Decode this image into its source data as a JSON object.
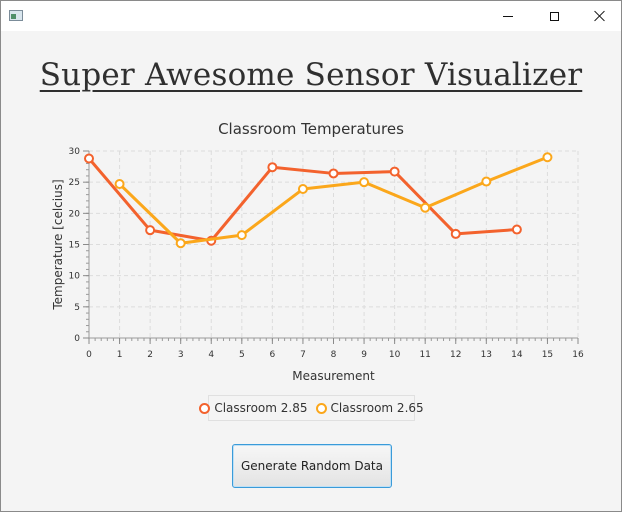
{
  "window": {
    "buttons": {
      "minimize": "minimize",
      "maximize": "maximize",
      "close": "close"
    }
  },
  "app_title": "Super Awesome Sensor Visualizer",
  "generate_button_label": "Generate Random Data",
  "chart_data": {
    "type": "line",
    "title": "Classroom Temperatures",
    "xlabel": "Measurement",
    "ylabel": "Temperature [celcius]",
    "xlim": [
      0,
      16
    ],
    "ylim": [
      0,
      30
    ],
    "x_ticks": [
      "0",
      "1",
      "2",
      "3",
      "4",
      "5",
      "6",
      "7",
      "8",
      "9",
      "10",
      "11",
      "12",
      "13",
      "14",
      "15",
      "16"
    ],
    "y_ticks": [
      "0",
      "5",
      "10",
      "15",
      "20",
      "25",
      "30"
    ],
    "grid": true,
    "legend_position": "bottom",
    "series": [
      {
        "name": "Classroom 2.85",
        "color": "#f3622d",
        "x": [
          0,
          2,
          4,
          6,
          8,
          10,
          12,
          14
        ],
        "y": [
          28.8,
          17.3,
          15.6,
          27.4,
          26.4,
          26.7,
          16.7,
          17.4
        ]
      },
      {
        "name": "Classroom 2.65",
        "color": "#fba71b",
        "x": [
          1,
          3,
          5,
          7,
          9,
          11,
          13,
          15
        ],
        "y": [
          24.7,
          15.2,
          16.5,
          23.9,
          25.0,
          20.9,
          25.1,
          29.0
        ]
      }
    ]
  }
}
